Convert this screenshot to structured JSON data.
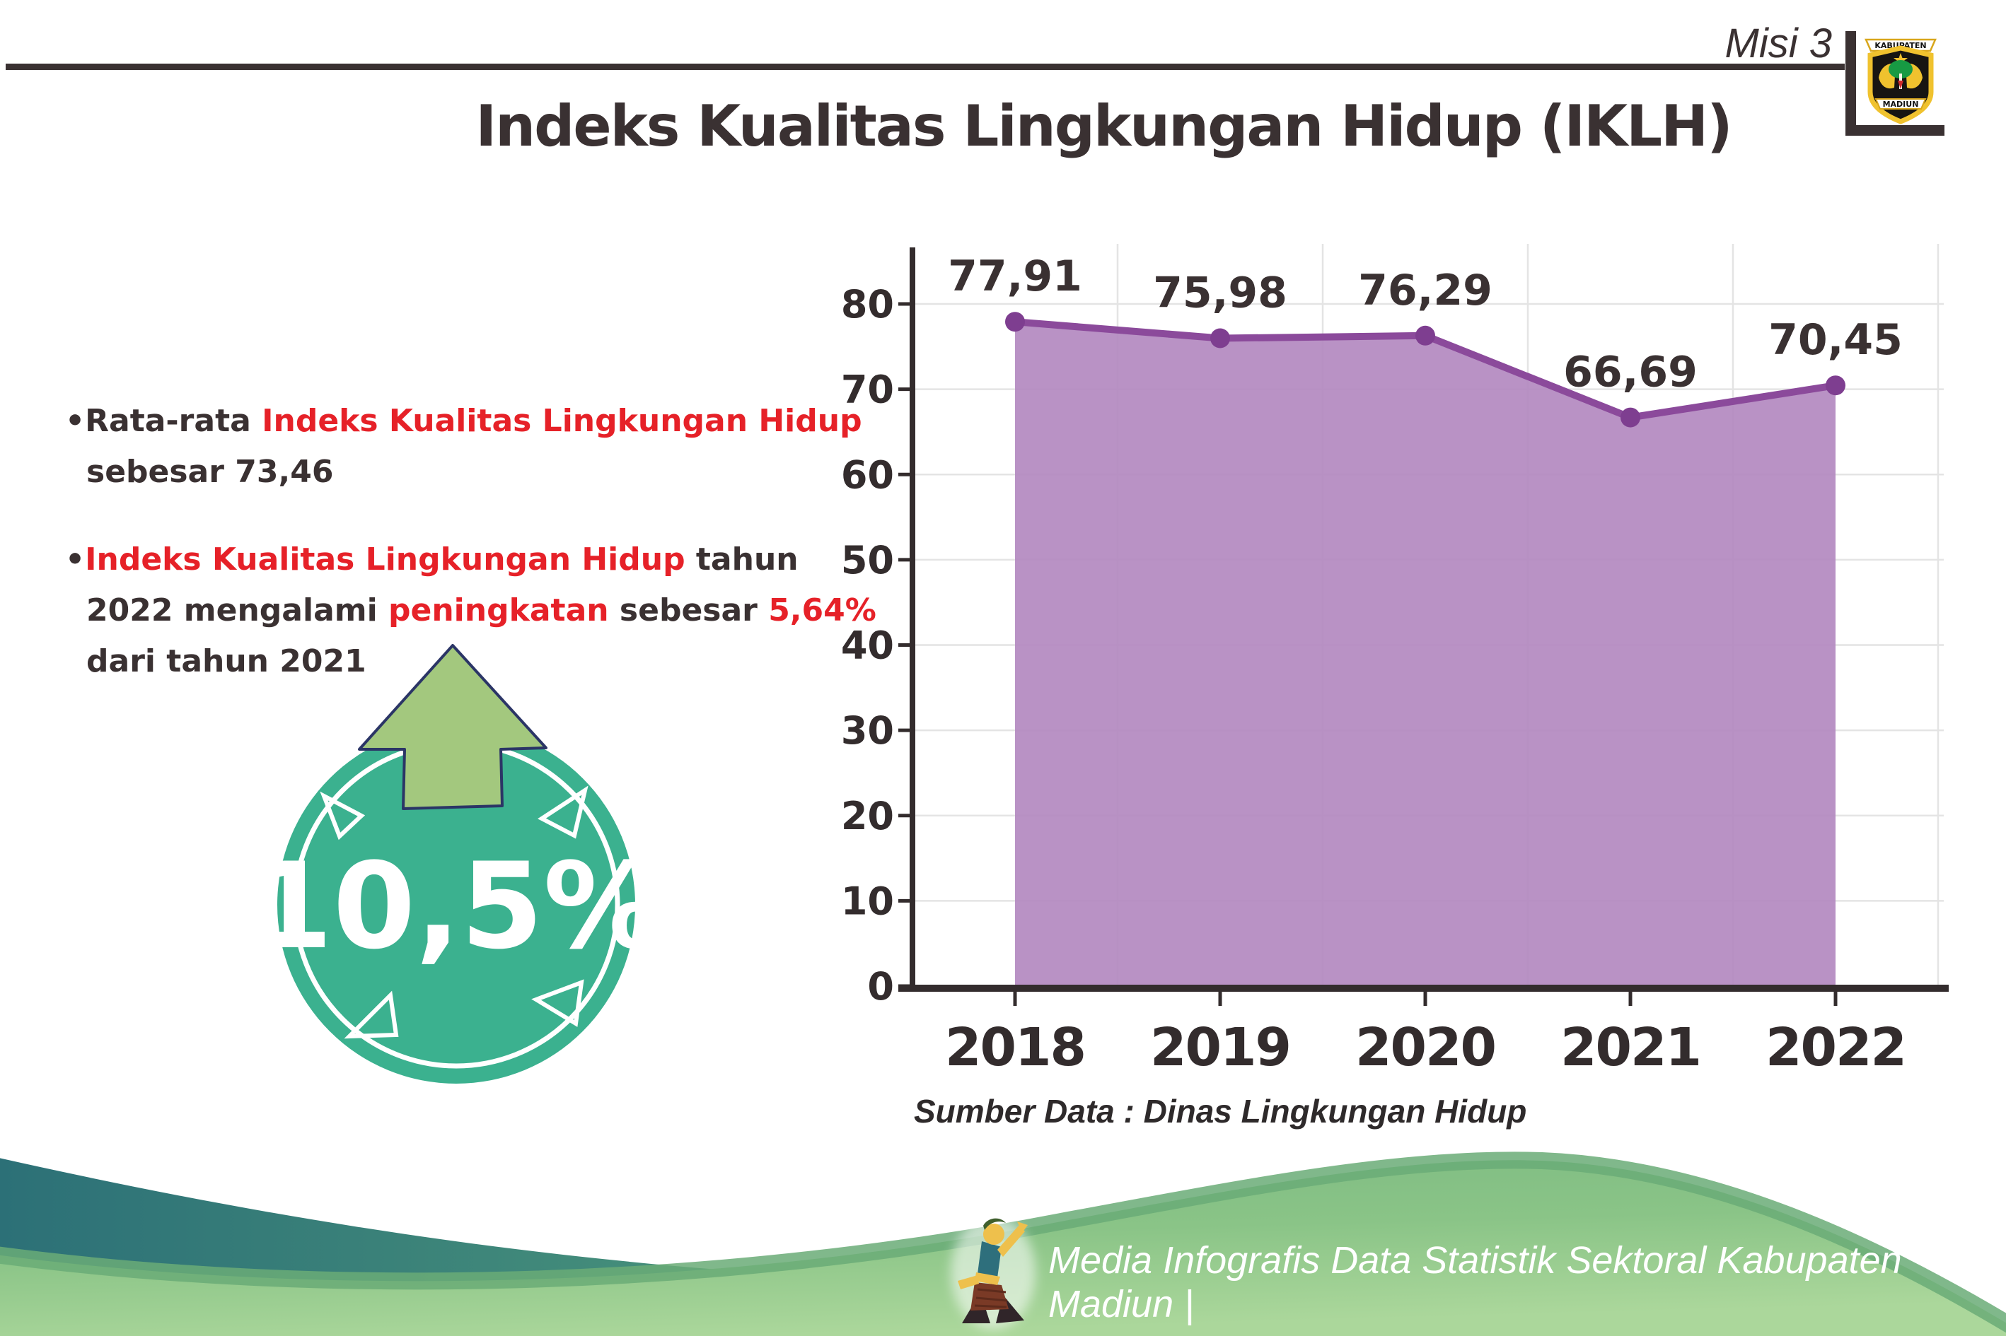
{
  "header": {
    "misi_label": "Misi 3",
    "title": "Indeks Kualitas Lingkungan Hidup (IKLH)"
  },
  "logo": {
    "top_text": "KABUPATEN",
    "bottom_text": "MADIUN"
  },
  "bullets": {
    "b1": [
      {
        "text": "•Rata-rata ",
        "color": "dark"
      },
      {
        "text": "Indeks Kualitas Lingkungan Hidup",
        "color": "red"
      },
      {
        "text": " sebesar 73,46",
        "color": "dark"
      }
    ],
    "b2": [
      {
        "text": "•",
        "color": "dark"
      },
      {
        "text": "Indeks Kualitas Lingkungan Hidup",
        "color": "red"
      },
      {
        "text": " tahun 2022 mengalami ",
        "color": "dark"
      },
      {
        "text": "peningkatan",
        "color": "red"
      },
      {
        "text": " sebesar ",
        "color": "dark"
      },
      {
        "text": "5,64%",
        "color": "red"
      },
      {
        "text": " dari tahun 2021",
        "color": "dark"
      }
    ]
  },
  "badge": {
    "value": "10,5%",
    "circle_color": "#3bb18f",
    "arrow_color": "#a3c87e",
    "arrow_outline": "#2b3566"
  },
  "chart_data": {
    "type": "area",
    "title": "",
    "categories": [
      "2018",
      "2019",
      "2020",
      "2021",
      "2022"
    ],
    "values": [
      77.91,
      75.98,
      76.29,
      66.69,
      70.45
    ],
    "value_labels": [
      "77,91",
      "75,98",
      "76,29",
      "66,69",
      "70,45"
    ],
    "ylim": [
      0,
      80
    ],
    "yticks": [
      0,
      10,
      20,
      30,
      40,
      50,
      60,
      70,
      80
    ],
    "grid": true,
    "legend": "none",
    "source_note": "Sumber Data : Dinas Lingkungan Hidup",
    "colors": {
      "line": "#8b4a9b",
      "fill": "#b186bf",
      "marker": "#7e3e90",
      "axis": "#332c2d",
      "grid": "#e4e4e4",
      "label": "#3a3132"
    }
  },
  "footer": {
    "caption": "Media Infografis Data Statistik Sektoral Kabupaten Madiun |",
    "teal_color": "#2c7077",
    "green_color": "#8ac487"
  },
  "accent_red": "#e62128"
}
